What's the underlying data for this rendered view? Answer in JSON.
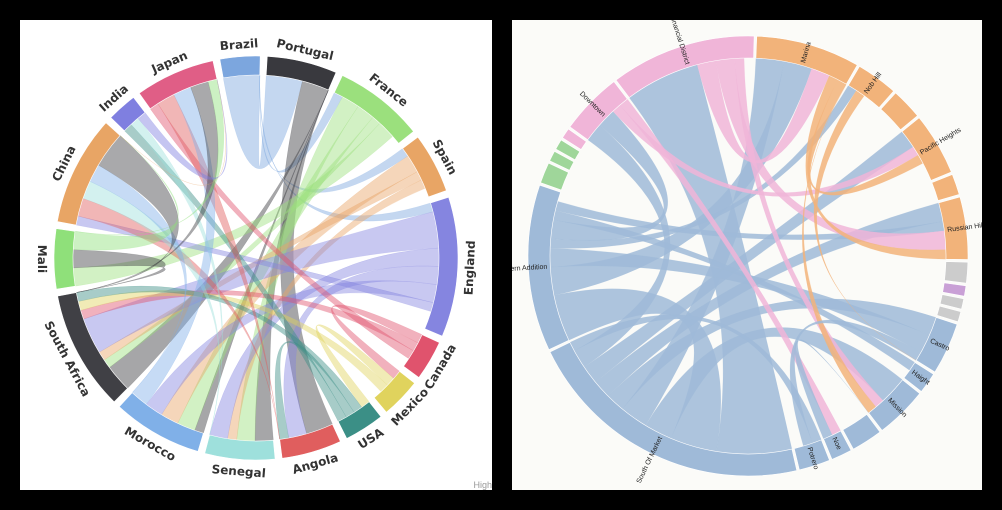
{
  "chart_data": [
    {
      "type": "chord",
      "title": "",
      "credit": "High",
      "groups": [
        {
          "name": "Brazil",
          "color": "#7ca6de",
          "value": 4
        },
        {
          "name": "Portugal",
          "color": "#39393e",
          "value": 7
        },
        {
          "name": "France",
          "color": "#9be07d",
          "value": 9
        },
        {
          "name": "Spain",
          "color": "#e8a565",
          "value": 6
        },
        {
          "name": "England",
          "color": "#8585e0",
          "value": 14
        },
        {
          "name": "Canada",
          "color": "#e0536d",
          "value": 4
        },
        {
          "name": "Mexico",
          "color": "#e0d35d",
          "value": 4
        },
        {
          "name": "USA",
          "color": "#3b8f86",
          "value": 4
        },
        {
          "name": "Angola",
          "color": "#e05e5e",
          "value": 6
        },
        {
          "name": "Senegal",
          "color": "#9ee0dc",
          "value": 7
        },
        {
          "name": "Morocco",
          "color": "#80b0e8",
          "value": 9
        },
        {
          "name": "South Africa",
          "color": "#404045",
          "value": 12
        },
        {
          "name": "Mali",
          "color": "#8fe07a",
          "value": 6
        },
        {
          "name": "China",
          "color": "#e8a565",
          "value": 11
        },
        {
          "name": "India",
          "color": "#7f7fe0",
          "value": 3
        },
        {
          "name": "Japan",
          "color": "#e05e86",
          "value": 8
        }
      ],
      "links": [
        [
          "Brazil",
          "Portugal",
          4
        ],
        [
          "Brazil",
          "France",
          1
        ],
        [
          "Brazil",
          "Spain",
          1
        ],
        [
          "Brazil",
          "England",
          1
        ],
        [
          "Portugal",
          "Angola",
          3
        ],
        [
          "Portugal",
          "Senegal",
          2
        ],
        [
          "Portugal",
          "Morocco",
          1
        ],
        [
          "Portugal",
          "South Africa",
          3
        ],
        [
          "France",
          "Senegal",
          2
        ],
        [
          "France",
          "Morocco",
          2
        ],
        [
          "France",
          "South Africa",
          1
        ],
        [
          "France",
          "Mali",
          2
        ],
        [
          "Spain",
          "Morocco",
          2
        ],
        [
          "Spain",
          "South Africa",
          1
        ],
        [
          "Spain",
          "Senegal",
          1
        ],
        [
          "England",
          "South Africa",
          4
        ],
        [
          "England",
          "Senegal",
          2
        ],
        [
          "England",
          "Angola",
          2
        ],
        [
          "England",
          "Morocco",
          2
        ],
        [
          "England",
          "China",
          1
        ],
        [
          "Canada",
          "Mexico",
          1
        ],
        [
          "Canada",
          "South Africa",
          1
        ],
        [
          "Canada",
          "Japan",
          1
        ],
        [
          "Mexico",
          "USA",
          1
        ],
        [
          "Mexico",
          "South Africa",
          1
        ],
        [
          "USA",
          "South Africa",
          1
        ],
        [
          "USA",
          "Angola",
          1
        ],
        [
          "USA",
          "India",
          1
        ],
        [
          "Angola",
          "China",
          2
        ],
        [
          "Angola",
          "Japan",
          2
        ],
        [
          "Senegal",
          "China",
          2
        ],
        [
          "Senegal",
          "India",
          1
        ],
        [
          "Morocco",
          "Japan",
          2
        ],
        [
          "Morocco",
          "China",
          2
        ],
        [
          "South Africa",
          "China",
          4
        ],
        [
          "South Africa",
          "Japan",
          2
        ],
        [
          "South Africa",
          "Mali",
          2
        ],
        [
          "Mali",
          "China",
          2
        ],
        [
          "Mali",
          "Japan",
          1
        ],
        [
          "China",
          "Japan",
          1
        ],
        [
          "India",
          "Japan",
          1
        ]
      ]
    },
    {
      "type": "chord",
      "title": "",
      "groups": [
        {
          "name": "Marina",
          "color": "#f2b37a",
          "value": 10
        },
        {
          "name": "Nob Hill",
          "color": "#f2b37a",
          "value": 4
        },
        {
          "name": "",
          "color": "#f2b37a",
          "value": 3
        },
        {
          "name": "Pacific Heights",
          "color": "#f2b37a",
          "value": 6
        },
        {
          "name": "",
          "color": "#f2b37a",
          "value": 2
        },
        {
          "name": "Russian Hill",
          "color": "#f2b37a",
          "value": 6
        },
        {
          "name": "",
          "color": "#cccccc",
          "value": 2
        },
        {
          "name": "",
          "color": "#c9a0d6",
          "value": 1
        },
        {
          "name": "",
          "color": "#cccccc",
          "value": 1
        },
        {
          "name": "",
          "color": "#cccccc",
          "value": 1
        },
        {
          "name": "Castro",
          "color": "#9fbad8",
          "value": 5
        },
        {
          "name": "Haight",
          "color": "#9fbad8",
          "value": 2
        },
        {
          "name": "Mission",
          "color": "#9fbad8",
          "value": 5
        },
        {
          "name": "",
          "color": "#9fbad8",
          "value": 3
        },
        {
          "name": "Noe",
          "color": "#9fbad8",
          "value": 2
        },
        {
          "name": "Potrero",
          "color": "#9fbad8",
          "value": 3
        },
        {
          "name": "South Of Market",
          "color": "#9fbad8",
          "value": 28
        },
        {
          "name": "Western Addition",
          "color": "#9fbad8",
          "value": 16
        },
        {
          "name": "",
          "color": "#9fd69a",
          "value": 2
        },
        {
          "name": "",
          "color": "#9fd69a",
          "value": 1
        },
        {
          "name": "",
          "color": "#9fd69a",
          "value": 1
        },
        {
          "name": "",
          "color": "#f0b5d8",
          "value": 1
        },
        {
          "name": "Downtown",
          "color": "#f0b5d8",
          "value": 6
        },
        {
          "name": "Financial District",
          "color": "#f0b5d8",
          "value": 14
        }
      ],
      "links": [
        [
          "South Of Market",
          "Financial District",
          8
        ],
        [
          "South Of Market",
          "Western Addition",
          5
        ],
        [
          "South Of Market",
          "Mission",
          3
        ],
        [
          "South Of Market",
          "Marina",
          3
        ],
        [
          "South Of Market",
          "Castro",
          2
        ],
        [
          "South Of Market",
          "Russian Hill",
          2
        ],
        [
          "South Of Market",
          "Pacific Heights",
          2
        ],
        [
          "South Of Market",
          "Downtown",
          2
        ],
        [
          "South Of Market",
          "Potrero",
          1
        ],
        [
          "Western Addition",
          "Marina",
          3
        ],
        [
          "Western Addition",
          "Castro",
          2
        ],
        [
          "Western Addition",
          "Nob Hill",
          1
        ],
        [
          "Western Addition",
          "Downtown",
          2
        ],
        [
          "Western Addition",
          "Haight",
          1
        ],
        [
          "Western Addition",
          "Russian Hill",
          1
        ],
        [
          "Financial District",
          "Marina",
          2
        ],
        [
          "Financial District",
          "Russian Hill",
          2
        ],
        [
          "Financial District",
          "Mission",
          1
        ],
        [
          "Downtown",
          "Pacific Heights",
          1
        ],
        [
          "Downtown",
          "Noe",
          1
        ],
        [
          "Marina",
          "Russian Hill",
          1
        ],
        [
          "Marina",
          "Pacific Heights",
          1
        ],
        [
          "Marina",
          "Mission",
          1
        ],
        [
          "Mission",
          "Noe",
          1
        ],
        [
          "Potrero",
          "Castro",
          1
        ],
        [
          "Nob Hill",
          "Castro",
          1
        ]
      ]
    }
  ]
}
